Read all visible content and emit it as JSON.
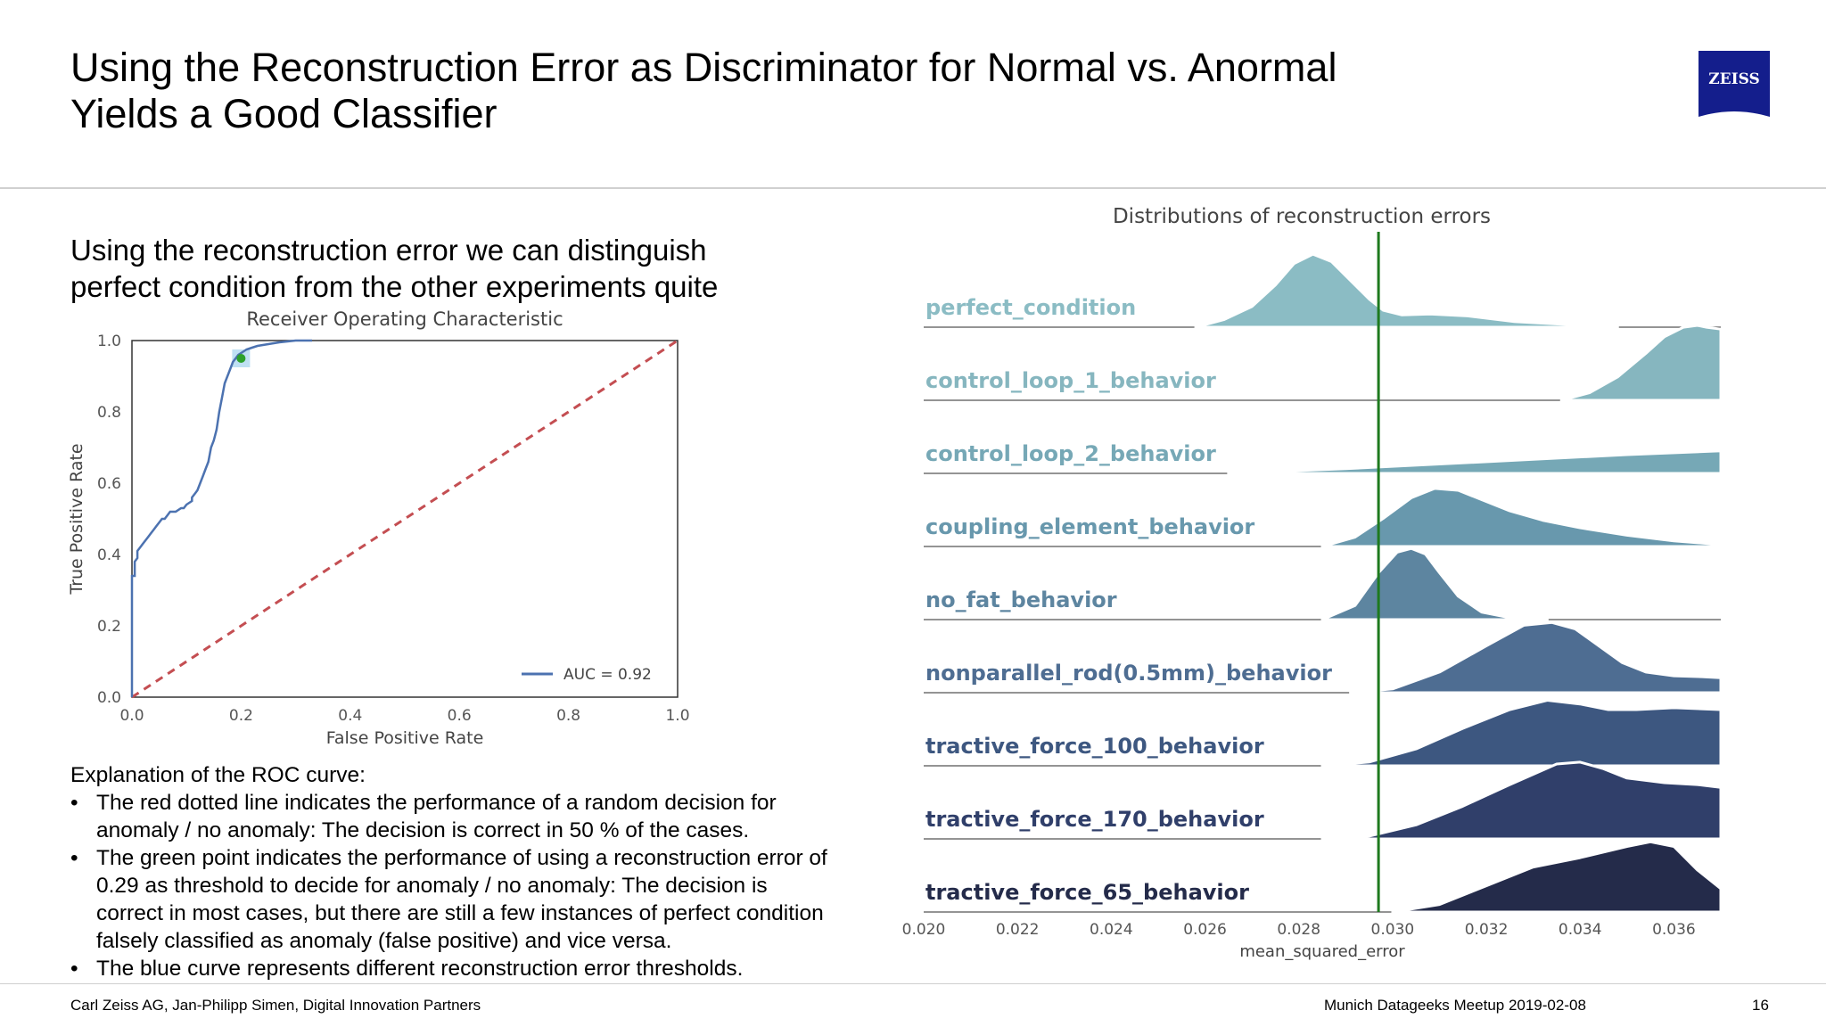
{
  "slide": {
    "title_lines": [
      "Using the Reconstruction Error as Discriminator for Normal vs. Anormal",
      "Yields a Good Classifier"
    ],
    "logo_text": "ZEISS",
    "subtitle_lines": [
      "Using the reconstruction error we can distinguish",
      "perfect condition from the other experiments quite"
    ],
    "explanation": {
      "heading": "Explanation of the ROC curve:",
      "bullets": [
        "The red dotted line indicates the performance of a random decision for anomaly / no anomaly: The decision is correct in 50 % of the cases.",
        "The green point indicates the performance of using a reconstruction error of 0.29 as threshold to decide for anomaly / no anomaly: The decision is correct in most cases, but there are still a few instances of perfect condition falsely classified as anomaly (false positive) and vice versa.",
        "The blue curve represents different reconstruction error thresholds."
      ]
    },
    "footer": {
      "left": "Carl Zeiss AG, Jan-Philipp Simen, Digital Innovation Partners",
      "middle": "Munich Datageeks Meetup 2019-02-08",
      "page_number": "16"
    },
    "colors": {
      "zeiss_blue": "#141e8c",
      "roc_curve": "#4c72b0",
      "random_line": "#c44e52",
      "operating_point": "#2ca02c",
      "threshold_line": "#1e7a1e"
    }
  },
  "chart_data": [
    {
      "type": "line",
      "title": "Receiver Operating Characteristic",
      "xlabel": "False Positive Rate",
      "ylabel": "True Positive Rate",
      "xlim": [
        0,
        1
      ],
      "ylim": [
        0,
        1
      ],
      "x_ticks": [
        "0.0",
        "0.2",
        "0.4",
        "0.6",
        "0.8",
        "1.0"
      ],
      "y_ticks": [
        "0.0",
        "0.2",
        "0.4",
        "0.6",
        "0.8",
        "1.0"
      ],
      "legend_position": "lower-right",
      "grid": false,
      "series": [
        {
          "name": "AUC = 0.92",
          "x": [
            0.0,
            0.0,
            0.005,
            0.005,
            0.01,
            0.01,
            0.015,
            0.02,
            0.025,
            0.03,
            0.035,
            0.04,
            0.045,
            0.05,
            0.055,
            0.06,
            0.065,
            0.07,
            0.08,
            0.09,
            0.095,
            0.1,
            0.11,
            0.11,
            0.115,
            0.12,
            0.125,
            0.13,
            0.135,
            0.14,
            0.145,
            0.15,
            0.155,
            0.16,
            0.165,
            0.17,
            0.175,
            0.18,
            0.185,
            0.19,
            0.195,
            0.2,
            0.205,
            0.21,
            0.22,
            0.23,
            0.25,
            0.27,
            0.3,
            0.33
          ],
          "y": [
            0.0,
            0.34,
            0.34,
            0.38,
            0.39,
            0.41,
            0.42,
            0.43,
            0.44,
            0.45,
            0.46,
            0.47,
            0.48,
            0.49,
            0.5,
            0.5,
            0.51,
            0.52,
            0.52,
            0.53,
            0.53,
            0.54,
            0.55,
            0.56,
            0.57,
            0.58,
            0.6,
            0.62,
            0.64,
            0.66,
            0.7,
            0.72,
            0.75,
            0.8,
            0.84,
            0.88,
            0.9,
            0.92,
            0.94,
            0.95,
            0.96,
            0.965,
            0.97,
            0.975,
            0.98,
            0.985,
            0.99,
            0.995,
            1.0,
            1.0
          ]
        },
        {
          "name": "random",
          "x": [
            0,
            1
          ],
          "y": [
            0,
            1
          ]
        }
      ],
      "operating_point": {
        "x": 0.2,
        "y": 0.95
      }
    },
    {
      "type": "area",
      "title": "Distributions of reconstruction errors",
      "xlabel": "mean_squared_error",
      "xlim": [
        0.02,
        0.037
      ],
      "x_ticks": [
        "0.020",
        "0.022",
        "0.024",
        "0.026",
        "0.028",
        "0.030",
        "0.032",
        "0.034",
        "0.036"
      ],
      "threshold_x": 0.0297,
      "series": [
        {
          "name": "perfect_condition",
          "color": "#8bbcc4",
          "label_color": "#8bbcc4",
          "x": [
            0.0258,
            0.0264,
            0.027,
            0.0275,
            0.0279,
            0.0283,
            0.0287,
            0.0291,
            0.0295,
            0.0298,
            0.0302,
            0.0308,
            0.0316,
            0.0326,
            0.034,
            0.0348
          ],
          "y": [
            0.0,
            0.08,
            0.22,
            0.45,
            0.68,
            0.78,
            0.7,
            0.5,
            0.3,
            0.18,
            0.13,
            0.14,
            0.12,
            0.06,
            0.02,
            0.0
          ]
        },
        {
          "name": "control_loop_1_behavior",
          "color": "#86b6bf",
          "label_color": "#86b6bf",
          "x": [
            0.0336,
            0.0342,
            0.0348,
            0.0354,
            0.0358,
            0.0362,
            0.0365,
            0.0367,
            0.037
          ],
          "y": [
            0.0,
            0.08,
            0.25,
            0.5,
            0.68,
            0.78,
            0.8,
            0.78,
            0.76
          ]
        },
        {
          "name": "control_loop_2_behavior",
          "color": "#76a8b6",
          "label_color": "#76a8b6",
          "x": [
            0.0265,
            0.029,
            0.031,
            0.033,
            0.035,
            0.037
          ],
          "y": [
            0.0,
            0.05,
            0.1,
            0.15,
            0.2,
            0.24
          ]
        },
        {
          "name": "coupling_element_behavior",
          "color": "#6898ad",
          "label_color": "#6898ad",
          "x": [
            0.0285,
            0.0292,
            0.0298,
            0.0304,
            0.0309,
            0.0314,
            0.0319,
            0.0325,
            0.0332,
            0.034,
            0.035,
            0.036,
            0.037
          ],
          "y": [
            0.0,
            0.1,
            0.3,
            0.52,
            0.62,
            0.6,
            0.5,
            0.38,
            0.28,
            0.2,
            0.12,
            0.06,
            0.02
          ]
        },
        {
          "name": "no_fat_behavior",
          "color": "#5d85a0",
          "label_color": "#5d85a0",
          "x": [
            0.0285,
            0.0292,
            0.0297,
            0.0301,
            0.0304,
            0.0307,
            0.031,
            0.0314,
            0.0319,
            0.0325,
            0.0333
          ],
          "y": [
            0.0,
            0.15,
            0.5,
            0.72,
            0.76,
            0.7,
            0.5,
            0.25,
            0.08,
            0.02,
            0.0
          ]
        },
        {
          "name": "nonparallel_rod(0.5mm)_behavior",
          "color": "#4e6d92",
          "label_color": "#4e6d92",
          "x": [
            0.0291,
            0.03,
            0.031,
            0.032,
            0.0328,
            0.0334,
            0.0339,
            0.0344,
            0.0349,
            0.0354,
            0.036,
            0.0366,
            0.037
          ],
          "y": [
            0.0,
            0.04,
            0.22,
            0.5,
            0.72,
            0.75,
            0.68,
            0.5,
            0.32,
            0.22,
            0.18,
            0.17,
            0.16
          ]
        },
        {
          "name": "tractive_force_100_behavior",
          "color": "#3d5780",
          "label_color": "#3d5780",
          "x": [
            0.0285,
            0.0295,
            0.0305,
            0.0315,
            0.0325,
            0.0333,
            0.034,
            0.0346,
            0.0352,
            0.036,
            0.037
          ],
          "y": [
            0.0,
            0.04,
            0.18,
            0.4,
            0.6,
            0.7,
            0.66,
            0.6,
            0.6,
            0.62,
            0.6
          ]
        },
        {
          "name": "tractive_force_170_behavior",
          "color": "#303f6a",
          "label_color": "#303f6a",
          "x": [
            0.0285,
            0.0295,
            0.0305,
            0.0315,
            0.0325,
            0.0335,
            0.034,
            0.0345,
            0.035,
            0.0358,
            0.0365,
            0.037
          ],
          "y": [
            0.0,
            0.03,
            0.15,
            0.35,
            0.58,
            0.8,
            0.82,
            0.75,
            0.65,
            0.6,
            0.58,
            0.55
          ]
        },
        {
          "name": "tractive_force_65_behavior",
          "color": "#242b4a",
          "label_color": "#242b4a",
          "x": [
            0.03,
            0.031,
            0.032,
            0.033,
            0.034,
            0.035,
            0.0355,
            0.036,
            0.0365,
            0.037
          ],
          "y": [
            0.0,
            0.08,
            0.28,
            0.48,
            0.58,
            0.7,
            0.75,
            0.7,
            0.45,
            0.25
          ]
        }
      ]
    }
  ]
}
